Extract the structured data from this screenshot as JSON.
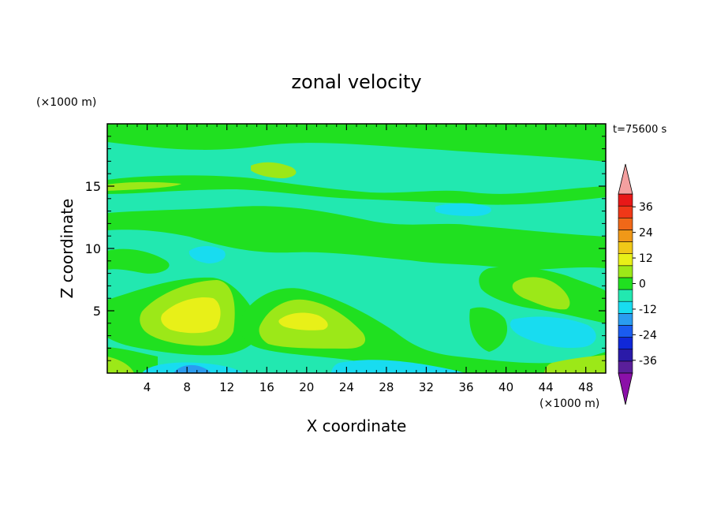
{
  "chart_data": {
    "type": "heatmap",
    "title": "zonal velocity",
    "time_label": "t=75600 s",
    "xlabel": "X coordinate",
    "ylabel": "Z coordinate",
    "x_unit": "(×1000 m)",
    "z_unit": "(×1000 m)",
    "xlim": [
      0,
      50
    ],
    "zlim": [
      0,
      20
    ],
    "x_ticks": [
      4,
      8,
      12,
      16,
      20,
      24,
      28,
      32,
      36,
      40,
      44,
      48
    ],
    "z_ticks": [
      5,
      10,
      15
    ],
    "colorbar": {
      "tick_labels": [
        "36",
        "24",
        "12",
        "0",
        "-12",
        "-24",
        "-36"
      ],
      "tick_values": [
        36,
        24,
        12,
        0,
        -12,
        -24,
        -36
      ],
      "levels": [
        -42,
        -36,
        -30,
        -24,
        -18,
        -12,
        -6,
        0,
        6,
        12,
        18,
        24,
        30,
        36,
        42
      ],
      "colors": [
        "#5a1f9a",
        "#2a1aa8",
        "#1028d8",
        "#1a5cf0",
        "#2a9cf0",
        "#18dcf0",
        "#22e8b0",
        "#20e020",
        "#9ce818",
        "#e8f018",
        "#f0c818",
        "#f09818",
        "#f06818",
        "#f03818",
        "#e81818"
      ],
      "under_color": "#8b10a8",
      "over_color": "#f4a0a0"
    },
    "fields": [
      {
        "level": "-6",
        "shape": "background",
        "z_range": [
          0,
          20
        ]
      },
      {
        "level": "0",
        "shape": "band",
        "z_range": [
          15,
          16
        ]
      },
      {
        "level": "0",
        "shape": "band",
        "z_range": [
          10,
          13
        ]
      },
      {
        "level": "0",
        "shape": "band",
        "z_range": [
          17.5,
          20
        ]
      },
      {
        "level": "6",
        "shape": "blob",
        "x": 10,
        "z": 4.8
      },
      {
        "level": "12",
        "shape": "blob",
        "x": 9,
        "z": 4.8
      },
      {
        "level": "6",
        "shape": "blob",
        "x": 22,
        "z": 3.8
      },
      {
        "level": "12",
        "shape": "blob",
        "x": 21,
        "z": 4.2
      },
      {
        "level": "6",
        "shape": "blob",
        "x": 44,
        "z": 6.8
      },
      {
        "level": "-12",
        "shape": "blob",
        "x": 9,
        "z": 0.4
      }
    ]
  }
}
